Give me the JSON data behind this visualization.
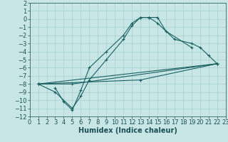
{
  "xlabel": "Humidex (Indice chaleur)",
  "xlim": [
    0,
    23
  ],
  "ylim": [
    -12,
    2
  ],
  "xticks": [
    0,
    1,
    2,
    3,
    4,
    5,
    6,
    7,
    8,
    9,
    10,
    11,
    12,
    13,
    14,
    15,
    16,
    17,
    18,
    19,
    20,
    21,
    22,
    23
  ],
  "yticks": [
    2,
    1,
    0,
    -1,
    -2,
    -3,
    -4,
    -5,
    -6,
    -7,
    -8,
    -9,
    -10,
    -11,
    -12
  ],
  "bg_color": "#c8e6e6",
  "grid_color": "#a8d0d0",
  "line_color": "#1a6060",
  "curve1_x": [
    1,
    3,
    5,
    6,
    7,
    9,
    11,
    12,
    13,
    14,
    15,
    16,
    19
  ],
  "curve1_y": [
    -8.0,
    -9.0,
    -11.0,
    -9.5,
    -7.5,
    -5.0,
    -2.5,
    -0.8,
    0.2,
    0.2,
    0.2,
    -1.5,
    -3.5
  ],
  "curve2_x": [
    3,
    4,
    5,
    6,
    7,
    9,
    11,
    12,
    13,
    14,
    15,
    17,
    19,
    20,
    21,
    22
  ],
  "curve2_y": [
    -8.5,
    -10.2,
    -11.2,
    -8.8,
    -6.0,
    -4.0,
    -2.0,
    -0.5,
    0.2,
    0.2,
    -0.5,
    -2.5,
    -3.0,
    -3.5,
    -4.5,
    -5.5
  ],
  "line1_x": [
    1,
    22
  ],
  "line1_y": [
    -8.0,
    -5.5
  ],
  "line2_x": [
    1,
    13,
    22
  ],
  "line2_y": [
    -8.0,
    -7.5,
    -5.5
  ],
  "line3_x": [
    1,
    5,
    22
  ],
  "line3_y": [
    -8.0,
    -8.0,
    -5.5
  ],
  "font_color": "#1a5050",
  "tick_fontsize": 6,
  "label_fontsize": 7
}
